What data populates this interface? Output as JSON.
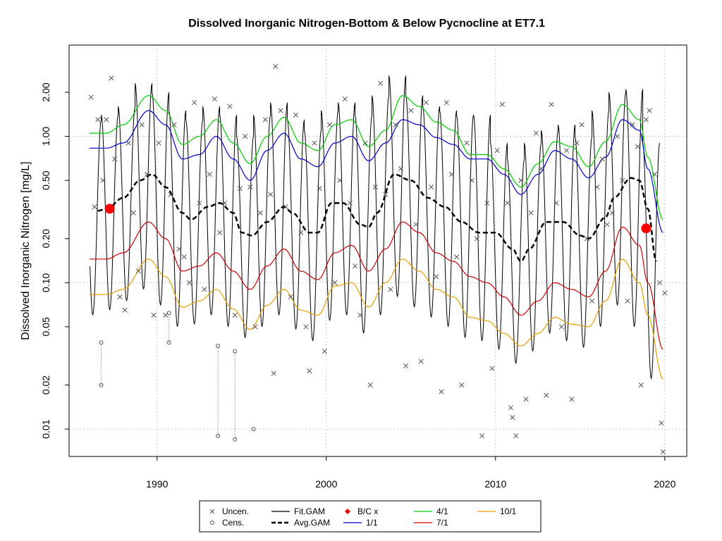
{
  "chart_data": {
    "type": "scatter",
    "title": "Dissolved Inorganic Nitrogen-Bottom & Below Pycnocline at ET7.1",
    "xlabel": "",
    "ylabel": "Dissolved Inorganic Nitrogen [mg/L]",
    "y_scale": "log",
    "xlim": [
      1984.8,
      2021.3
    ],
    "ylim": [
      0.0065,
      4.2
    ],
    "x_ticks": [
      1990,
      2000,
      2010,
      2020
    ],
    "y_ticks": [
      0.01,
      0.02,
      0.05,
      0.1,
      0.2,
      0.5,
      1.0,
      2.0
    ],
    "y_tick_labels": [
      "0.01",
      "0.02",
      "0.05",
      "0.10",
      "0.20",
      "0.50",
      "1.00",
      "2.00"
    ],
    "grid": true,
    "legend_placement": "bottom",
    "legend": [
      {
        "label": "Uncen.",
        "kind": "cross",
        "color": "#555555"
      },
      {
        "label": "Cens.",
        "kind": "circle",
        "color": "#555555"
      },
      {
        "label": "Fit.GAM",
        "kind": "line",
        "color": "#000000"
      },
      {
        "label": "Avg.GAM",
        "kind": "dashed",
        "color": "#000000"
      },
      {
        "label": "B/C x",
        "kind": "diamond",
        "color": "#ff0000"
      },
      {
        "label": "1/1",
        "kind": "line",
        "color": "#0000cc"
      },
      {
        "label": "4/1",
        "kind": "line",
        "color": "#00cc00"
      },
      {
        "label": "7/1",
        "kind": "line",
        "color": "#cc0000"
      },
      {
        "label": "10/1",
        "kind": "line",
        "color": "#e69f00"
      }
    ],
    "colors": {
      "fit": "#000000",
      "jan": "#0000cc",
      "apr": "#00cc00",
      "jul": "#cc0000",
      "oct": "#e69f00",
      "bc": "#ff0000",
      "points": "#555555",
      "grid": "#c8c8c8"
    },
    "series": [
      {
        "name": "1/1",
        "x": [
          1986.0,
          1987.0,
          1988.0,
          1989.5,
          1990.5,
          1991.5,
          1992.5,
          1993.5,
          1994.5,
          1995.5,
          1996.5,
          1997.5,
          1998.5,
          1999.5,
          2000.5,
          2001.5,
          2002.5,
          2003.5,
          2004.5,
          2005.5,
          2006.5,
          2007.5,
          2008.5,
          2009.5,
          2010.5,
          2011.5,
          2012.5,
          2013.5,
          2014.5,
          2015.5,
          2016.5,
          2017.5,
          2018.5,
          2019.0,
          2019.9
        ],
        "y": [
          0.83,
          0.83,
          0.9,
          1.5,
          1.2,
          0.7,
          0.75,
          1.0,
          0.7,
          0.5,
          0.8,
          1.05,
          0.7,
          0.62,
          0.9,
          1.0,
          0.68,
          0.9,
          1.3,
          1.2,
          0.98,
          0.88,
          0.7,
          0.7,
          0.55,
          0.4,
          0.55,
          0.8,
          0.7,
          0.52,
          0.72,
          1.3,
          1.1,
          0.6,
          0.22
        ]
      },
      {
        "name": "4/1",
        "x": [
          1986.0,
          1987.0,
          1988.0,
          1989.5,
          1990.5,
          1991.5,
          1992.5,
          1993.5,
          1994.5,
          1995.5,
          1996.5,
          1997.5,
          1998.5,
          1999.5,
          2000.5,
          2001.5,
          2002.5,
          2003.5,
          2004.5,
          2005.5,
          2006.5,
          2007.5,
          2008.5,
          2009.5,
          2010.5,
          2011.5,
          2012.5,
          2013.5,
          2014.5,
          2015.5,
          2016.5,
          2017.5,
          2018.5,
          2019.0,
          2019.9
        ],
        "y": [
          1.05,
          1.05,
          1.2,
          1.9,
          1.5,
          0.88,
          1.0,
          1.3,
          0.9,
          0.65,
          1.0,
          1.35,
          0.9,
          0.8,
          1.2,
          1.3,
          0.85,
          1.1,
          1.9,
          1.6,
          1.25,
          1.1,
          0.75,
          0.75,
          0.6,
          0.45,
          0.65,
          0.92,
          0.85,
          0.62,
          0.92,
          1.65,
          1.3,
          0.72,
          0.27
        ]
      },
      {
        "name": "7/1",
        "x": [
          1986.0,
          1987.0,
          1988.0,
          1989.5,
          1990.5,
          1991.5,
          1992.5,
          1993.5,
          1994.5,
          1995.5,
          1996.5,
          1997.5,
          1998.5,
          1999.5,
          2000.5,
          2001.5,
          2002.5,
          2003.5,
          2004.5,
          2005.5,
          2006.5,
          2007.5,
          2008.5,
          2009.5,
          2010.5,
          2011.5,
          2012.5,
          2013.5,
          2014.5,
          2015.5,
          2016.5,
          2017.5,
          2018.5,
          2019.0,
          2019.9
        ],
        "y": [
          0.145,
          0.145,
          0.16,
          0.26,
          0.2,
          0.12,
          0.13,
          0.16,
          0.12,
          0.09,
          0.13,
          0.17,
          0.12,
          0.105,
          0.16,
          0.18,
          0.12,
          0.17,
          0.26,
          0.22,
          0.16,
          0.14,
          0.11,
          0.1,
          0.08,
          0.06,
          0.075,
          0.1,
          0.09,
          0.08,
          0.12,
          0.24,
          0.18,
          0.1,
          0.035
        ]
      },
      {
        "name": "10/1",
        "x": [
          1986.0,
          1987.0,
          1988.0,
          1989.5,
          1990.5,
          1991.5,
          1992.5,
          1993.5,
          1994.5,
          1995.5,
          1996.5,
          1997.5,
          1998.5,
          1999.5,
          2000.5,
          2001.5,
          2002.5,
          2003.5,
          2004.5,
          2005.5,
          2006.5,
          2007.5,
          2008.5,
          2009.5,
          2010.5,
          2011.5,
          2012.5,
          2013.5,
          2014.5,
          2015.5,
          2016.5,
          2017.5,
          2018.5,
          2019.0,
          2019.9
        ],
        "y": [
          0.083,
          0.083,
          0.09,
          0.145,
          0.11,
          0.068,
          0.075,
          0.09,
          0.066,
          0.048,
          0.07,
          0.09,
          0.065,
          0.06,
          0.095,
          0.1,
          0.068,
          0.1,
          0.145,
          0.12,
          0.09,
          0.08,
          0.058,
          0.055,
          0.045,
          0.037,
          0.045,
          0.058,
          0.052,
          0.05,
          0.075,
          0.145,
          0.1,
          0.06,
          0.022
        ]
      },
      {
        "name": "Avg.GAM",
        "x": [
          1986.5,
          1987.0,
          1988.0,
          1989.0,
          1989.7,
          1990.5,
          1991.5,
          1992.0,
          1993.0,
          1993.7,
          1994.5,
          1995.0,
          1995.6,
          1996.5,
          1997.5,
          1998.0,
          1999.0,
          1999.5,
          2000.3,
          2001.0,
          2002.0,
          2002.5,
          2003.0,
          2004.0,
          2005.0,
          2006.0,
          2007.0,
          2008.0,
          2009.0,
          2010.0,
          2011.0,
          2011.5,
          2012.0,
          2013.0,
          2014.0,
          2015.0,
          2015.5,
          2016.5,
          2017.0,
          2018.0,
          2018.5,
          2019.0,
          2019.5
        ],
        "y": [
          0.31,
          0.32,
          0.38,
          0.5,
          0.55,
          0.45,
          0.3,
          0.27,
          0.33,
          0.35,
          0.3,
          0.22,
          0.21,
          0.26,
          0.33,
          0.3,
          0.22,
          0.22,
          0.35,
          0.35,
          0.25,
          0.24,
          0.3,
          0.55,
          0.5,
          0.38,
          0.33,
          0.26,
          0.22,
          0.22,
          0.17,
          0.14,
          0.17,
          0.26,
          0.26,
          0.21,
          0.2,
          0.28,
          0.38,
          0.52,
          0.5,
          0.32,
          0.14
        ]
      },
      {
        "name": "B/C x",
        "x": [
          1987.2,
          2018.9
        ],
        "y": [
          0.32,
          0.235
        ]
      }
    ],
    "fit_gam_peaks": [
      1.3,
      1.4,
      1.6,
      2.3,
      2.0,
      1.5,
      1.3,
      1.6,
      1.4,
      1.0,
      1.4,
      1.7,
      1.3,
      1.1,
      1.5,
      1.7,
      1.4,
      1.9,
      2.6,
      1.9,
      1.6,
      1.5,
      1.4,
      1.4,
      0.9,
      0.7,
      0.9,
      1.1,
      1.2,
      1.0,
      1.5,
      2.0,
      2.1,
      0.9
    ],
    "fit_gam_troughs": [
      0.06,
      0.065,
      0.075,
      0.09,
      0.07,
      0.05,
      0.052,
      0.06,
      0.05,
      0.042,
      0.05,
      0.06,
      0.048,
      0.04,
      0.055,
      0.06,
      0.045,
      0.06,
      0.08,
      0.068,
      0.058,
      0.05,
      0.042,
      0.04,
      0.035,
      0.028,
      0.034,
      0.045,
      0.04,
      0.036,
      0.05,
      0.07,
      0.05,
      0.022
    ],
    "uncensored": [
      [
        1986.1,
        1.85
      ],
      [
        1986.3,
        0.33
      ],
      [
        1986.5,
        1.3
      ],
      [
        1986.8,
        0.5
      ],
      [
        1987.0,
        1.3
      ],
      [
        1987.3,
        2.5
      ],
      [
        1987.5,
        0.7
      ],
      [
        1987.8,
        0.08
      ],
      [
        1988.1,
        0.065
      ],
      [
        1988.3,
        0.9
      ],
      [
        1988.6,
        0.3
      ],
      [
        1988.9,
        0.12
      ],
      [
        1989.1,
        1.2
      ],
      [
        1989.4,
        0.55
      ],
      [
        1989.8,
        0.06
      ],
      [
        1990.1,
        0.9
      ],
      [
        1990.5,
        0.06
      ],
      [
        1990.8,
        0.4
      ],
      [
        1991.0,
        1.2
      ],
      [
        1991.3,
        0.17
      ],
      [
        1991.6,
        0.15
      ],
      [
        1991.9,
        0.1
      ],
      [
        1992.2,
        1.7
      ],
      [
        1992.5,
        0.35
      ],
      [
        1992.8,
        0.09
      ],
      [
        1993.1,
        0.55
      ],
      [
        1993.4,
        1.8
      ],
      [
        1993.7,
        0.22
      ],
      [
        1994.0,
        0.35
      ],
      [
        1994.3,
        1.6
      ],
      [
        1994.6,
        0.06
      ],
      [
        1994.9,
        0.44
      ],
      [
        1995.2,
        1.0
      ],
      [
        1995.5,
        0.45
      ],
      [
        1995.8,
        0.05
      ],
      [
        1996.1,
        0.3
      ],
      [
        1996.4,
        1.3
      ],
      [
        1996.7,
        0.4
      ],
      [
        1996.9,
        0.024
      ],
      [
        1997.0,
        3.0
      ],
      [
        1997.3,
        1.5
      ],
      [
        1997.6,
        0.33
      ],
      [
        1997.9,
        0.08
      ],
      [
        1998.2,
        1.4
      ],
      [
        1998.5,
        0.22
      ],
      [
        1998.8,
        0.05
      ],
      [
        1999.0,
        0.025
      ],
      [
        1999.3,
        0.9
      ],
      [
        1999.6,
        0.44
      ],
      [
        1999.9,
        0.034
      ],
      [
        2000.2,
        1.2
      ],
      [
        2000.5,
        0.1
      ],
      [
        2000.8,
        0.5
      ],
      [
        2001.1,
        1.8
      ],
      [
        2001.4,
        0.35
      ],
      [
        2001.7,
        0.13
      ],
      [
        2002.0,
        0.06
      ],
      [
        2002.3,
        0.9
      ],
      [
        2002.6,
        0.02
      ],
      [
        2002.9,
        0.45
      ],
      [
        2003.2,
        2.3
      ],
      [
        2003.5,
        0.4
      ],
      [
        2003.8,
        0.09
      ],
      [
        2004.1,
        1.2
      ],
      [
        2004.4,
        0.6
      ],
      [
        2004.7,
        0.027
      ],
      [
        2005.0,
        1.5
      ],
      [
        2005.3,
        0.25
      ],
      [
        2005.6,
        0.029
      ],
      [
        2005.9,
        1.7
      ],
      [
        2006.2,
        0.45
      ],
      [
        2006.5,
        0.11
      ],
      [
        2006.8,
        0.018
      ],
      [
        2007.1,
        1.7
      ],
      [
        2007.4,
        0.55
      ],
      [
        2007.7,
        0.15
      ],
      [
        2008.0,
        0.02
      ],
      [
        2008.3,
        0.9
      ],
      [
        2008.6,
        0.5
      ],
      [
        2008.9,
        0.2
      ],
      [
        2009.2,
        0.009
      ],
      [
        2009.5,
        0.35
      ],
      [
        2009.8,
        0.026
      ],
      [
        2010.1,
        0.8
      ],
      [
        2010.4,
        1.65
      ],
      [
        2010.7,
        0.35
      ],
      [
        2010.9,
        0.014
      ],
      [
        2011.0,
        0.012
      ],
      [
        2011.2,
        0.009
      ],
      [
        2011.5,
        0.5
      ],
      [
        2011.8,
        0.016
      ],
      [
        2012.1,
        0.3
      ],
      [
        2012.4,
        1.05
      ],
      [
        2012.7,
        0.6
      ],
      [
        2013.0,
        0.017
      ],
      [
        2013.3,
        1.65
      ],
      [
        2013.6,
        0.35
      ],
      [
        2013.9,
        0.05
      ],
      [
        2014.2,
        0.8
      ],
      [
        2014.5,
        0.016
      ],
      [
        2014.8,
        0.9
      ],
      [
        2015.1,
        1.2
      ],
      [
        2015.4,
        0.2
      ],
      [
        2015.7,
        0.075
      ],
      [
        2016.0,
        0.45
      ],
      [
        2016.3,
        0.7
      ],
      [
        2016.6,
        0.25
      ],
      [
        2016.9,
        0.3
      ],
      [
        2017.2,
        1.0
      ],
      [
        2017.5,
        0.5
      ],
      [
        2017.8,
        0.075
      ],
      [
        2018.1,
        1.2
      ],
      [
        2018.4,
        0.85
      ],
      [
        2018.6,
        0.02
      ],
      [
        2018.9,
        1.3
      ],
      [
        2019.1,
        1.5
      ],
      [
        2019.4,
        0.55
      ],
      [
        2019.7,
        0.1
      ],
      [
        2019.8,
        0.011
      ],
      [
        2019.9,
        0.007
      ],
      [
        2020.0,
        0.085
      ]
    ],
    "censored": [
      {
        "x": 1986.7,
        "low": 0.02,
        "high": 0.039
      },
      {
        "x": 1990.7,
        "low": 0.039,
        "high": 0.062
      },
      {
        "x": 1993.6,
        "low": 0.009,
        "high": 0.037
      },
      {
        "x": 1994.6,
        "low": 0.0085,
        "high": 0.034
      },
      {
        "x": 1995.7,
        "low": 0.01,
        "high": 0.01
      }
    ]
  }
}
